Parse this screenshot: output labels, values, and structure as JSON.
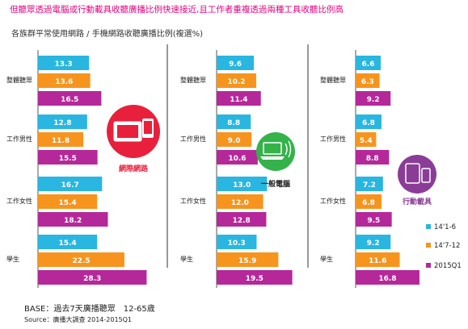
{
  "headline": "但聽眾透過電腦或行動載具收聽廣播比例快速接近,且工作者重複透過兩種工具收聽比例高",
  "subtitle": "各族群平常使用網路 / 手機網路收聽廣播比例(複選%)",
  "base_note": "BASE：過去7天廣播聽眾　12-65歲",
  "source_note": "Source：廣播大調查 2014-2015Q1",
  "colors": {
    "series": [
      "#29b6e0",
      "#f7941d",
      "#b5289a"
    ],
    "red_circle": "#e8203c",
    "green_circle": "#33b34a",
    "purple_circle": "#8a3d96"
  },
  "chart_data": {
    "type": "bar",
    "orientation": "horizontal",
    "categories": [
      "整體聽眾",
      "工作男性",
      "工作女性",
      "學生"
    ],
    "series_labels": [
      "14'1-6",
      "14'7-12",
      "2015Q1"
    ],
    "legend_position": "right",
    "panels": [
      {
        "label": "網際網路",
        "icon": "tablet-phone-icon",
        "series": [
          {
            "name": "14'1-6",
            "values": [
              13.3,
              12.8,
              16.7,
              15.4
            ]
          },
          {
            "name": "14'7-12",
            "values": [
              13.6,
              11.8,
              15.4,
              22.5
            ]
          },
          {
            "name": "2015Q1",
            "values": [
              16.5,
              15.5,
              18.2,
              28.3
            ]
          }
        ]
      },
      {
        "label": "一般電腦",
        "icon": "laptop-wifi-icon",
        "series": [
          {
            "name": "14'1-6",
            "values": [
              9.6,
              8.8,
              13.0,
              10.3
            ]
          },
          {
            "name": "14'7-12",
            "values": [
              10.2,
              9.0,
              12.0,
              15.9
            ]
          },
          {
            "name": "2015Q1",
            "values": [
              11.4,
              10.6,
              12.8,
              19.5
            ]
          }
        ]
      },
      {
        "label": "行動載具",
        "icon": "mobile-devices-icon",
        "series": [
          {
            "name": "14'1-6",
            "values": [
              6.6,
              6.8,
              7.2,
              9.2
            ]
          },
          {
            "name": "14'7-12",
            "values": [
              6.3,
              5.4,
              6.8,
              11.6
            ]
          },
          {
            "name": "2015Q1",
            "values": [
              9.2,
              8.8,
              9.5,
              16.8
            ]
          }
        ]
      }
    ]
  }
}
